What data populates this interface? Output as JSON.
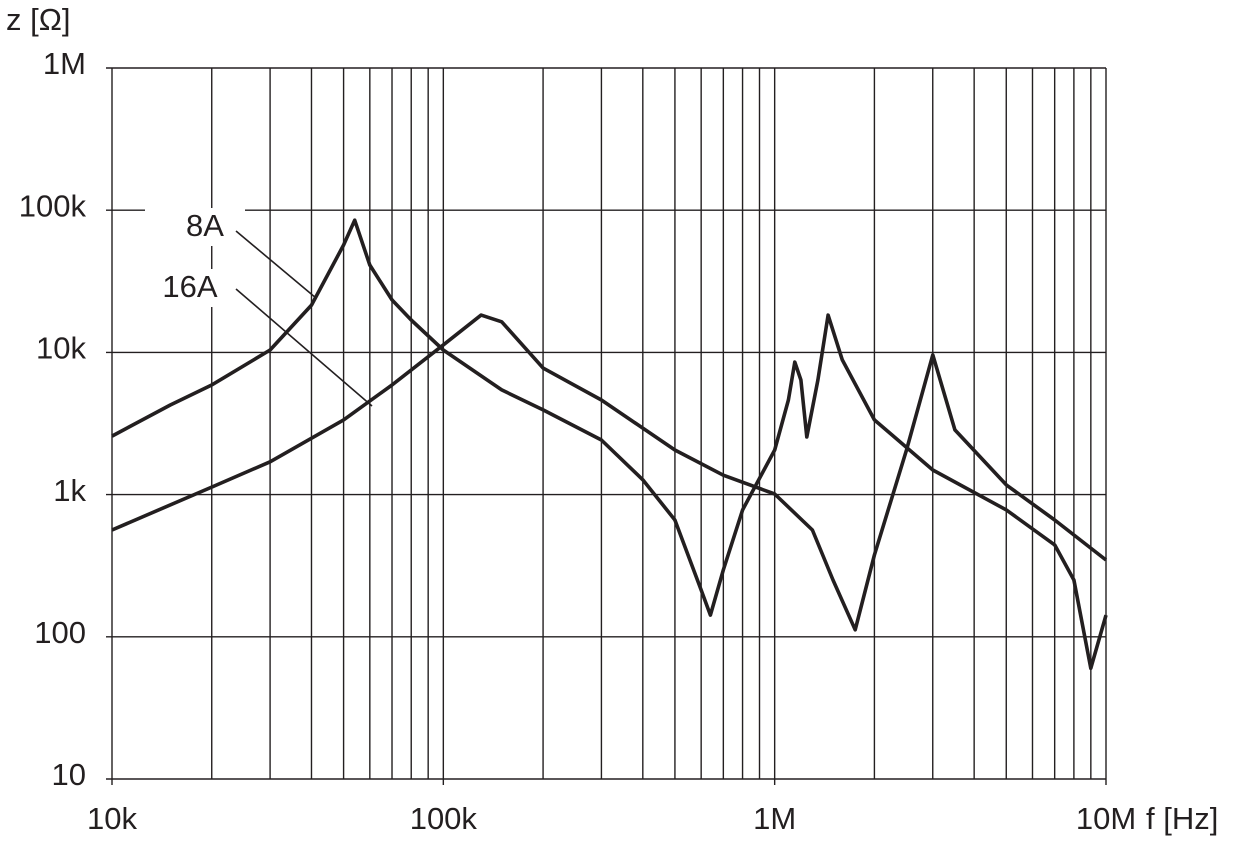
{
  "chart_data": {
    "type": "line",
    "y_label": "z [Ω]",
    "x_label": "f [Hz]",
    "x_log": true,
    "y_log": true,
    "grid": true,
    "xlim": [
      10000,
      10000000
    ],
    "ylim": [
      10,
      1000000
    ],
    "xticks": [
      {
        "value": 10000,
        "label": "10k"
      },
      {
        "value": 100000,
        "label": "100k"
      },
      {
        "value": 1000000,
        "label": "1M"
      },
      {
        "value": 10000000,
        "label": "10M"
      }
    ],
    "xgrid": [
      20000,
      30000,
      40000,
      50000,
      60000,
      70000,
      80000,
      90000,
      200000,
      300000,
      400000,
      500000,
      600000,
      700000,
      800000,
      900000,
      2000000,
      3000000,
      4000000,
      5000000,
      6000000,
      7000000,
      8000000,
      9000000
    ],
    "yticks": [
      10,
      100,
      {
        "value": 1000,
        "label": "1k"
      },
      {
        "value": 10000,
        "label": "10k"
      },
      {
        "value": 100000,
        "label": "100k"
      },
      {
        "value": 1000000,
        "label": "1M"
      }
    ],
    "series": [
      {
        "name": "8A",
        "color": "#231f20",
        "x": [
          10000,
          15000,
          20000,
          30000,
          40000,
          50000,
          54000,
          60000,
          70000,
          80000,
          100000,
          150000,
          200000,
          300000,
          400000,
          500000,
          600000,
          640000,
          700000,
          800000,
          1000000,
          1100000,
          1150000,
          1200000,
          1250000,
          1350000,
          1450000,
          1600000,
          2000000,
          3000000,
          5000000,
          7000000,
          8000000,
          9000000,
          10000000
        ],
        "values": [
          2580,
          4270,
          5900,
          10400,
          21500,
          56900,
          85000,
          41200,
          23400,
          16900,
          10400,
          5450,
          3940,
          2420,
          1270,
          663,
          213,
          142,
          295,
          780,
          2060,
          4630,
          8550,
          6400,
          2540,
          6400,
          18300,
          8860,
          3350,
          1490,
          780,
          443,
          251,
          60,
          142
        ]
      },
      {
        "name": "16A",
        "color": "#231f20",
        "x": [
          10000,
          20000,
          30000,
          50000,
          70000,
          100000,
          130000,
          150000,
          200000,
          300000,
          500000,
          700000,
          1000000,
          1300000,
          1500000,
          1750000,
          2000000,
          2500000,
          3000000,
          3500000,
          5000000,
          7000000,
          10000000
        ],
        "values": [
          564,
          1130,
          1700,
          3350,
          5900,
          11300,
          18300,
          16400,
          7760,
          4630,
          2060,
          1370,
          1010,
          564,
          251,
          112,
          376,
          2060,
          9600,
          2850,
          1170,
          663,
          347
        ]
      }
    ]
  }
}
